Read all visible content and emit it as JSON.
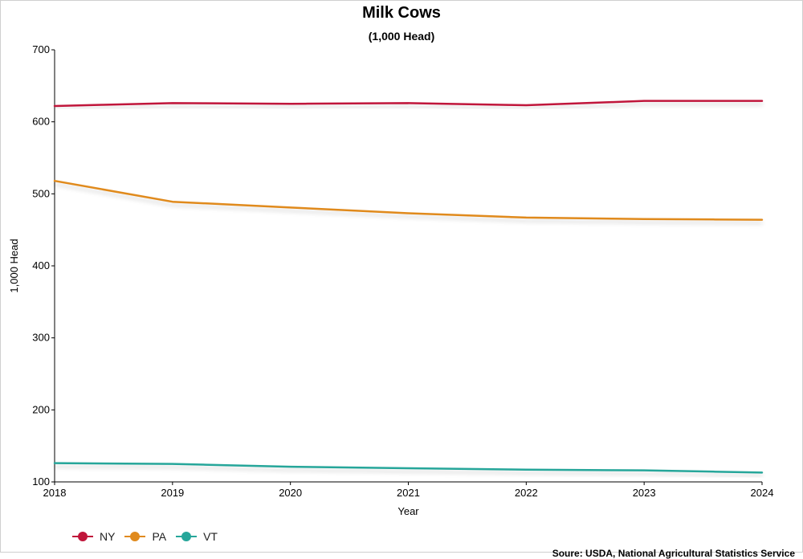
{
  "chart_data": {
    "type": "line",
    "title": "Milk Cows",
    "subtitle": "(1,000 Head)",
    "xlabel": "Year",
    "ylabel": "1,000 Head",
    "ylim": [
      100,
      700
    ],
    "yticks": [
      100,
      200,
      300,
      400,
      500,
      600,
      700
    ],
    "categories": [
      "2018",
      "2019",
      "2020",
      "2021",
      "2022",
      "2023",
      "2024"
    ],
    "series": [
      {
        "name": "NY",
        "color": "#c0153a",
        "values": [
          622,
          626,
          625,
          626,
          623,
          629,
          629
        ]
      },
      {
        "name": "PA",
        "color": "#e08a1e",
        "values": [
          518,
          489,
          481,
          473,
          467,
          465,
          464
        ]
      },
      {
        "name": "VT",
        "color": "#26a69a",
        "values": [
          126,
          125,
          121,
          119,
          117,
          116,
          113
        ]
      }
    ],
    "grid": false,
    "legend_position": "bottom-left"
  },
  "source": "Soure: USDA, National Agricultural Statistics Service"
}
